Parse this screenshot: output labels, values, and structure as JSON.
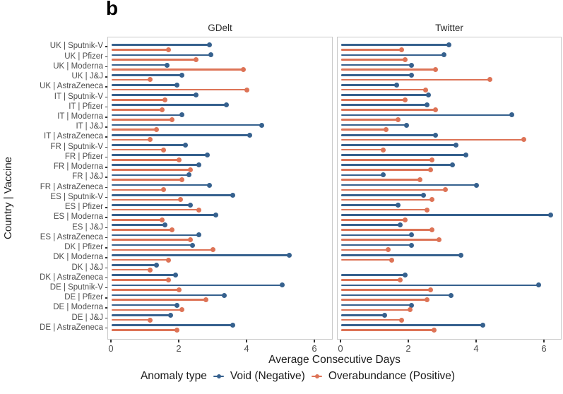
{
  "figure": {
    "label": "b"
  },
  "chart_data": {
    "type": "lollipop-bar",
    "title": "",
    "xlabel": "Average Consecutive Days",
    "ylabel": "Country | Vaccine",
    "x_ticks": [
      0,
      2,
      4,
      6
    ],
    "xlim": [
      0,
      6.6
    ],
    "grid": false,
    "legend": {
      "title": "Anomaly type",
      "position": "bottom",
      "items": [
        {
          "label": "Void (Negative)",
          "color": "#36618E"
        },
        {
          "label": "Overabundance (Positive)",
          "color": "#DD7356"
        }
      ]
    },
    "categories": [
      "UK | Sputnik-V",
      "UK | Pfizer",
      "UK | Moderna",
      "UK | J&J",
      "UK | AstraZeneca",
      "IT | Sputnik-V",
      "IT | Pfizer",
      "IT | Moderna",
      "IT | J&J",
      "IT | AstraZeneca",
      "FR | Sputnik-V",
      "FR | Pfizer",
      "FR | Moderna",
      "FR | J&J",
      "FR | AstraZeneca",
      "ES | Sputnik-V",
      "ES | Pfizer",
      "ES | Moderna",
      "ES | J&J",
      "ES | AstraZeneca",
      "DK | Pfizer",
      "DK | Moderna",
      "DK | J&J",
      "DK | AstraZeneca",
      "DE | Sputnik-V",
      "DE | Pfizer",
      "DE | Moderna",
      "DE | J&J",
      "DE | AstraZeneca"
    ],
    "panels": [
      {
        "title": "GDelt",
        "series": [
          {
            "name": "Void (Negative)",
            "color": "#36618E",
            "values": [
              2.9,
              2.95,
              1.65,
              2.1,
              1.95,
              2.5,
              3.4,
              2.1,
              4.45,
              4.1,
              2.2,
              2.85,
              2.6,
              2.3,
              2.9,
              3.6,
              2.35,
              3.1,
              1.6,
              2.6,
              2.4,
              5.25,
              1.35,
              1.9,
              5.05,
              3.35,
              1.95,
              1.75,
              3.6
            ]
          },
          {
            "name": "Overabundance (Positive)",
            "color": "#DD7356",
            "values": [
              1.7,
              2.5,
              3.9,
              1.15,
              4.0,
              1.6,
              1.5,
              1.8,
              1.35,
              1.15,
              1.55,
              2.0,
              2.35,
              2.1,
              1.55,
              2.05,
              2.6,
              1.5,
              1.8,
              2.35,
              3.0,
              1.7,
              1.15,
              1.7,
              2.0,
              2.8,
              2.1,
              1.15,
              1.95
            ]
          }
        ]
      },
      {
        "title": "Twitter",
        "series": [
          {
            "name": "Void (Negative)",
            "color": "#36618E",
            "values": [
              3.2,
              3.05,
              2.1,
              2.1,
              1.65,
              2.6,
              2.55,
              5.05,
              1.95,
              2.8,
              3.4,
              3.7,
              3.3,
              1.25,
              4.0,
              2.45,
              1.7,
              6.2,
              1.75,
              2.1,
              2.1,
              3.55,
              null,
              1.9,
              5.85,
              3.25,
              2.1,
              1.3,
              4.2
            ]
          },
          {
            "name": "Overabundance (Positive)",
            "color": "#DD7356",
            "values": [
              1.8,
              1.9,
              2.8,
              4.4,
              2.5,
              1.9,
              2.8,
              1.7,
              1.35,
              5.4,
              1.25,
              2.7,
              2.65,
              2.35,
              3.1,
              2.7,
              2.55,
              1.9,
              2.7,
              2.9,
              1.4,
              1.5,
              null,
              1.75,
              2.65,
              2.55,
              2.05,
              1.8,
              2.75
            ]
          }
        ]
      }
    ]
  }
}
